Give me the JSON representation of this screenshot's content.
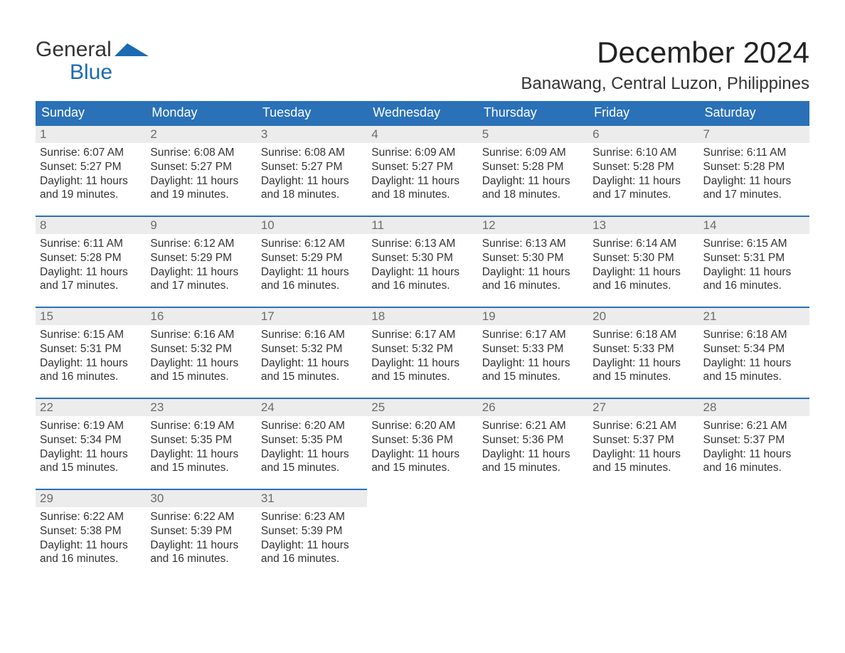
{
  "logo": {
    "word1": "General",
    "word2": "Blue",
    "flag_color": "#1b6ab2"
  },
  "title": "December 2024",
  "location": "Banawang, Central Luzon, Philippines",
  "colors": {
    "header_bg": "#2a71b8",
    "header_text": "#ffffff",
    "row_border": "#2a71b8",
    "daynum_bg": "#ececec",
    "daynum_text": "#6b6b6b",
    "body_text": "#333333",
    "logo_blue": "#1b6ab2",
    "page_bg": "#ffffff"
  },
  "typography": {
    "title_fontsize": 42,
    "location_fontsize": 24,
    "header_fontsize": 18,
    "daynum_fontsize": 17,
    "body_fontsize": 15.5,
    "logo_fontsize": 30
  },
  "weekdays": [
    "Sunday",
    "Monday",
    "Tuesday",
    "Wednesday",
    "Thursday",
    "Friday",
    "Saturday"
  ],
  "labels": {
    "sunrise": "Sunrise: ",
    "sunset": "Sunset: ",
    "daylight": "Daylight: "
  },
  "days": [
    {
      "n": "1",
      "sr": "6:07 AM",
      "ss": "5:27 PM",
      "dl": "11 hours and 19 minutes."
    },
    {
      "n": "2",
      "sr": "6:08 AM",
      "ss": "5:27 PM",
      "dl": "11 hours and 19 minutes."
    },
    {
      "n": "3",
      "sr": "6:08 AM",
      "ss": "5:27 PM",
      "dl": "11 hours and 18 minutes."
    },
    {
      "n": "4",
      "sr": "6:09 AM",
      "ss": "5:27 PM",
      "dl": "11 hours and 18 minutes."
    },
    {
      "n": "5",
      "sr": "6:09 AM",
      "ss": "5:28 PM",
      "dl": "11 hours and 18 minutes."
    },
    {
      "n": "6",
      "sr": "6:10 AM",
      "ss": "5:28 PM",
      "dl": "11 hours and 17 minutes."
    },
    {
      "n": "7",
      "sr": "6:11 AM",
      "ss": "5:28 PM",
      "dl": "11 hours and 17 minutes."
    },
    {
      "n": "8",
      "sr": "6:11 AM",
      "ss": "5:28 PM",
      "dl": "11 hours and 17 minutes."
    },
    {
      "n": "9",
      "sr": "6:12 AM",
      "ss": "5:29 PM",
      "dl": "11 hours and 17 minutes."
    },
    {
      "n": "10",
      "sr": "6:12 AM",
      "ss": "5:29 PM",
      "dl": "11 hours and 16 minutes."
    },
    {
      "n": "11",
      "sr": "6:13 AM",
      "ss": "5:30 PM",
      "dl": "11 hours and 16 minutes."
    },
    {
      "n": "12",
      "sr": "6:13 AM",
      "ss": "5:30 PM",
      "dl": "11 hours and 16 minutes."
    },
    {
      "n": "13",
      "sr": "6:14 AM",
      "ss": "5:30 PM",
      "dl": "11 hours and 16 minutes."
    },
    {
      "n": "14",
      "sr": "6:15 AM",
      "ss": "5:31 PM",
      "dl": "11 hours and 16 minutes."
    },
    {
      "n": "15",
      "sr": "6:15 AM",
      "ss": "5:31 PM",
      "dl": "11 hours and 16 minutes."
    },
    {
      "n": "16",
      "sr": "6:16 AM",
      "ss": "5:32 PM",
      "dl": "11 hours and 15 minutes."
    },
    {
      "n": "17",
      "sr": "6:16 AM",
      "ss": "5:32 PM",
      "dl": "11 hours and 15 minutes."
    },
    {
      "n": "18",
      "sr": "6:17 AM",
      "ss": "5:32 PM",
      "dl": "11 hours and 15 minutes."
    },
    {
      "n": "19",
      "sr": "6:17 AM",
      "ss": "5:33 PM",
      "dl": "11 hours and 15 minutes."
    },
    {
      "n": "20",
      "sr": "6:18 AM",
      "ss": "5:33 PM",
      "dl": "11 hours and 15 minutes."
    },
    {
      "n": "21",
      "sr": "6:18 AM",
      "ss": "5:34 PM",
      "dl": "11 hours and 15 minutes."
    },
    {
      "n": "22",
      "sr": "6:19 AM",
      "ss": "5:34 PM",
      "dl": "11 hours and 15 minutes."
    },
    {
      "n": "23",
      "sr": "6:19 AM",
      "ss": "5:35 PM",
      "dl": "11 hours and 15 minutes."
    },
    {
      "n": "24",
      "sr": "6:20 AM",
      "ss": "5:35 PM",
      "dl": "11 hours and 15 minutes."
    },
    {
      "n": "25",
      "sr": "6:20 AM",
      "ss": "5:36 PM",
      "dl": "11 hours and 15 minutes."
    },
    {
      "n": "26",
      "sr": "6:21 AM",
      "ss": "5:36 PM",
      "dl": "11 hours and 15 minutes."
    },
    {
      "n": "27",
      "sr": "6:21 AM",
      "ss": "5:37 PM",
      "dl": "11 hours and 15 minutes."
    },
    {
      "n": "28",
      "sr": "6:21 AM",
      "ss": "5:37 PM",
      "dl": "11 hours and 16 minutes."
    },
    {
      "n": "29",
      "sr": "6:22 AM",
      "ss": "5:38 PM",
      "dl": "11 hours and 16 minutes."
    },
    {
      "n": "30",
      "sr": "6:22 AM",
      "ss": "5:39 PM",
      "dl": "11 hours and 16 minutes."
    },
    {
      "n": "31",
      "sr": "6:23 AM",
      "ss": "5:39 PM",
      "dl": "11 hours and 16 minutes."
    }
  ],
  "layout": {
    "first_weekday_offset": 0,
    "total_cells": 35
  }
}
